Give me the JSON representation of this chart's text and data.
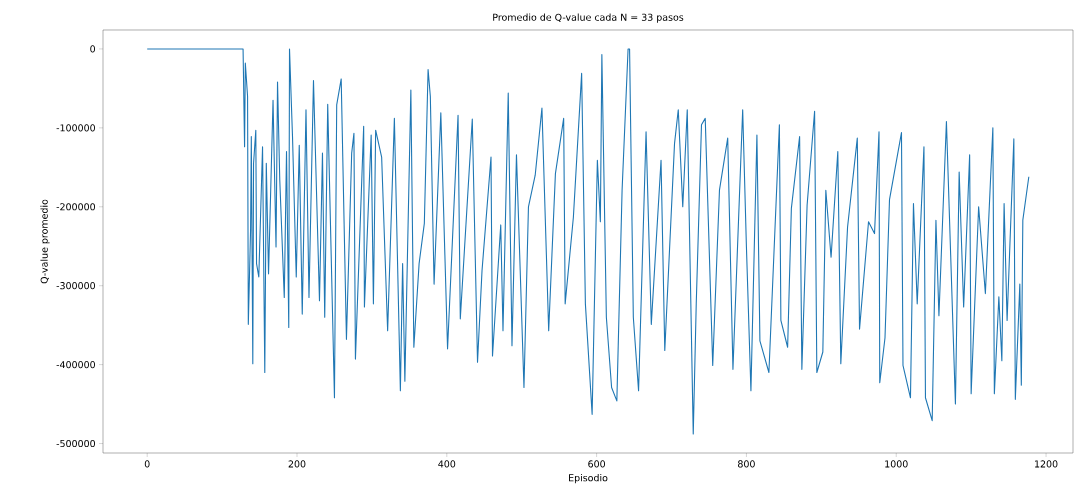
{
  "chart_data": {
    "type": "line",
    "title": "Promedio de Q-value cada N = 33 pasos",
    "xlabel": "Episodio",
    "ylabel": "Q-value promedio",
    "xlim": [
      -59,
      1236
    ],
    "ylim": [
      -512000,
      24000
    ],
    "xticks": [
      0,
      200,
      400,
      600,
      800,
      1000,
      1200
    ],
    "yticks": [
      0,
      -100000,
      -200000,
      -300000,
      -400000,
      -500000
    ],
    "marker": "none",
    "line_style": "solid",
    "series": [
      {
        "color": "#1f77b4",
        "x": [
          0,
          128,
          130,
          131,
          134,
          135,
          138,
          139,
          141,
          142,
          145,
          146,
          149,
          154,
          157,
          159,
          162,
          168,
          172,
          174,
          177,
          183,
          186,
          189,
          190,
          194,
          199,
          203,
          207,
          212,
          216,
          222,
          230,
          234,
          237,
          241,
          250,
          253,
          259,
          266,
          273,
          276,
          278,
          289,
          290,
          299,
          302,
          305,
          313,
          321,
          330,
          338,
          341,
          344,
          352,
          356,
          363,
          370,
          375,
          378,
          383,
          392,
          401,
          415,
          418,
          434,
          441,
          447,
          459,
          461,
          472,
          475,
          482,
          487,
          493,
          503,
          509,
          518,
          527,
          536,
          545,
          556,
          558,
          569,
          580,
          585,
          594,
          601,
          605,
          607,
          613,
          620,
          627,
          634,
          642,
          644,
          649,
          656,
          666,
          673,
          686,
          691,
          704,
          709,
          715,
          721,
          729,
          733,
          740,
          745,
          755,
          764,
          775,
          782,
          795,
          800,
          806,
          814,
          818,
          830,
          844,
          846,
          855,
          860,
          871,
          874,
          881,
          891,
          894,
          902,
          906,
          913,
          922,
          926,
          935,
          948,
          951,
          963,
          971,
          977,
          978,
          985,
          991,
          1007,
          1009,
          1019,
          1023,
          1028,
          1037,
          1039,
          1048,
          1053,
          1057,
          1067,
          1079,
          1084,
          1090,
          1098,
          1100,
          1110,
          1119,
          1129,
          1131,
          1137,
          1141,
          1144,
          1148,
          1157,
          1159,
          1165,
          1167,
          1169,
          1177
        ],
        "values": [
          0,
          0,
          -124000,
          -18000,
          -60000,
          -349000,
          -230000,
          -111000,
          -399000,
          -145000,
          -103000,
          -272000,
          -289000,
          -124000,
          -410000,
          -145000,
          -285000,
          -65000,
          -251000,
          -42000,
          -166000,
          -315000,
          -130000,
          -353000,
          0,
          -111000,
          -289000,
          -122000,
          -336000,
          -77000,
          -315000,
          -40000,
          -319000,
          -132000,
          -340000,
          -70000,
          -442000,
          -71000,
          -38000,
          -368000,
          -132000,
          -107000,
          -393000,
          -98000,
          -327000,
          -109000,
          -323000,
          -103000,
          -137000,
          -357000,
          -88000,
          -433000,
          -272000,
          -421000,
          -52000,
          -378000,
          -272000,
          -221000,
          -26000,
          -60000,
          -298000,
          -81000,
          -380000,
          -84000,
          -342000,
          -89000,
          -397000,
          -281000,
          -137000,
          -389000,
          -223000,
          -357000,
          -56000,
          -376000,
          -134000,
          -429000,
          -200000,
          -160000,
          -75000,
          -357000,
          -158000,
          -88000,
          -323000,
          -213000,
          -31000,
          -323000,
          -463000,
          -141000,
          -219000,
          -7000,
          -340000,
          -429000,
          -446000,
          -179000,
          0,
          0,
          -340000,
          -433000,
          -105000,
          -349000,
          -141000,
          -382000,
          -120000,
          -77000,
          -200000,
          -77000,
          -488000,
          -323000,
          -96000,
          -88000,
          -401000,
          -179000,
          -113000,
          -406000,
          -77000,
          -251000,
          -433000,
          -109000,
          -370000,
          -410000,
          -96000,
          -344000,
          -378000,
          -202000,
          -111000,
          -406000,
          -198000,
          -79000,
          -410000,
          -384000,
          -179000,
          -264000,
          -130000,
          -399000,
          -226000,
          -113000,
          -355000,
          -219000,
          -234000,
          -105000,
          -423000,
          -366000,
          -191000,
          -106000,
          -401000,
          -442000,
          -196000,
          -323000,
          -124000,
          -442000,
          -471000,
          -217000,
          -338000,
          -92000,
          -450000,
          -156000,
          -327000,
          -134000,
          -437000,
          -200000,
          -310000,
          -100000,
          -437000,
          -314000,
          -395000,
          -196000,
          -344000,
          -114000,
          -444000,
          -298000,
          -426000,
          -217000,
          -162000
        ]
      }
    ]
  }
}
